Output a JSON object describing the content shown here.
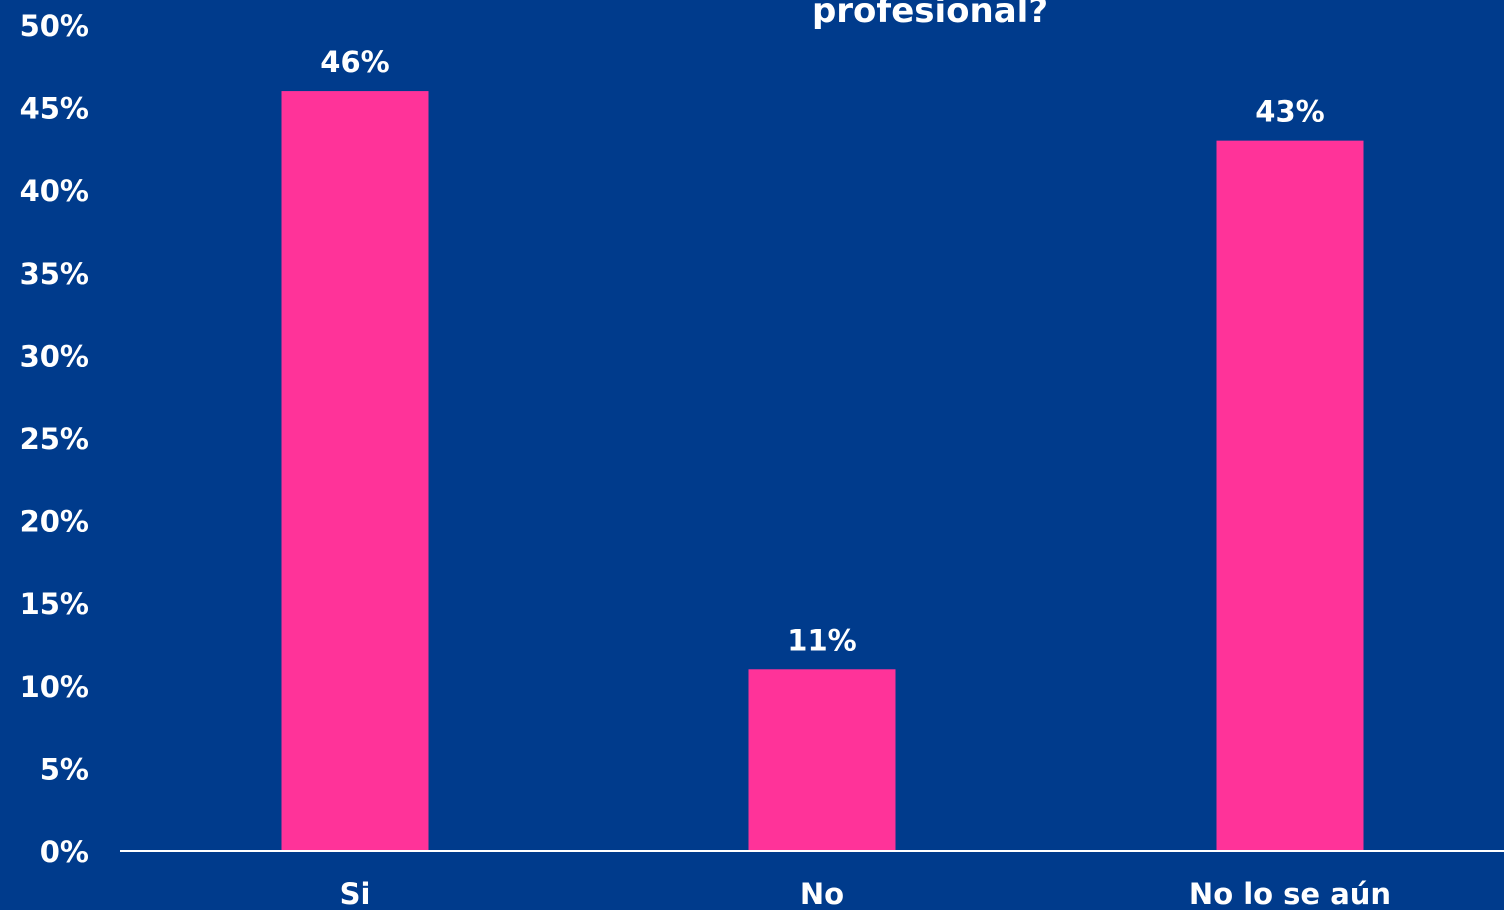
{
  "chart_data": {
    "type": "bar",
    "title": "profesional?",
    "categories": [
      "Si",
      "No",
      "No lo se aún"
    ],
    "values": [
      46,
      11,
      43
    ],
    "data_labels": [
      "46%",
      "11%",
      "43%"
    ],
    "yticks": [
      0,
      5,
      10,
      15,
      20,
      25,
      30,
      35,
      40,
      45,
      50
    ],
    "ytick_labels": [
      "0%",
      "5%",
      "10%",
      "15%",
      "20%",
      "25%",
      "30%",
      "35%",
      "40%",
      "45%",
      "50%"
    ],
    "ylim": [
      0,
      50
    ],
    "xlabel": "",
    "ylabel": "",
    "grid": false,
    "legend": "none",
    "colors": {
      "background": "#003b8c",
      "bar": "#ff3399",
      "text": "#ffffff",
      "axis": "#ffffff"
    }
  }
}
